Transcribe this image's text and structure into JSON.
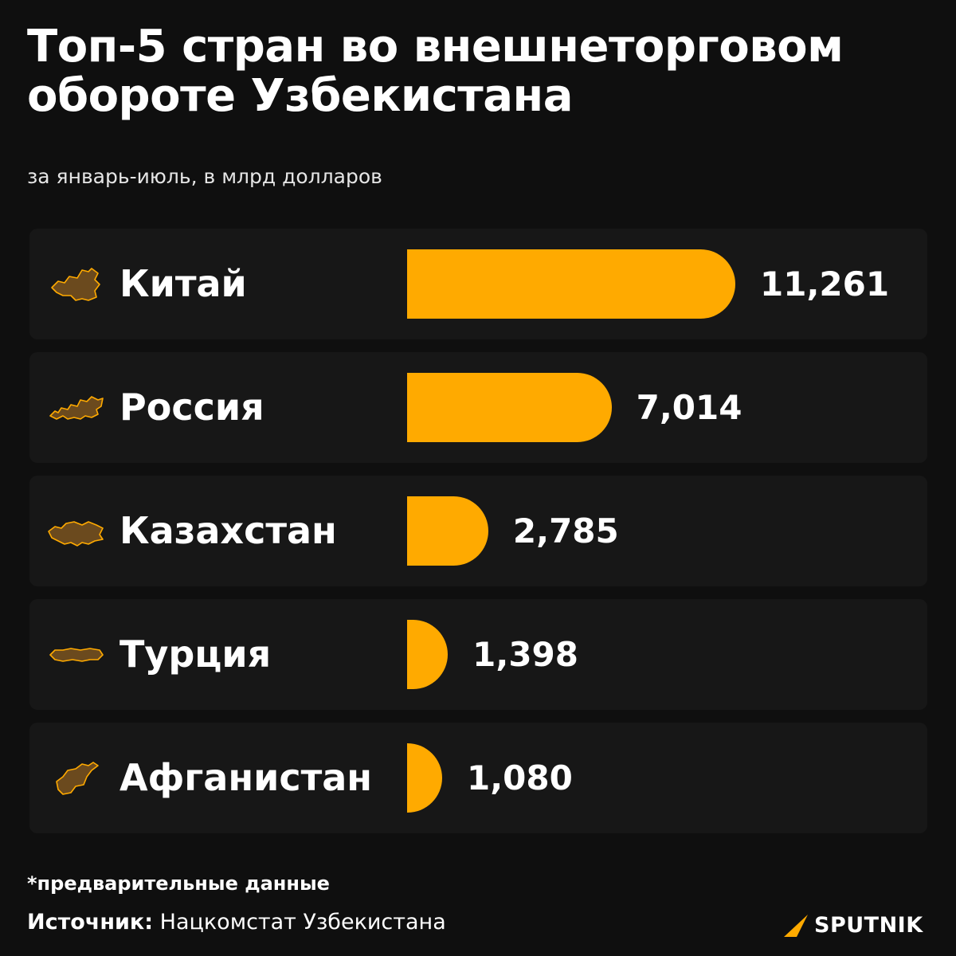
{
  "header": {
    "title": "Топ-5 стран во внешнеторговом обороте Узбекистана",
    "subtitle": "за январь-июль, в млрд долларов"
  },
  "colors": {
    "background": "#0f0f0f",
    "row": "#171717",
    "bar": "#ffaa00",
    "map_fill": "#6b4a1e",
    "map_outline": "#ffaa00"
  },
  "chart_data": {
    "type": "bar",
    "orientation": "horizontal",
    "title": "Топ-5 стран во внешнеторговом обороте Узбекистана",
    "subtitle": "за январь-июль, в млрд долларов",
    "categories": [
      "Китай",
      "Россия",
      "Казахстан",
      "Турция",
      "Афганистан"
    ],
    "values": [
      11.261,
      7.014,
      2.785,
      1.398,
      1.08
    ],
    "value_labels": [
      "11,261",
      "7,014",
      "2,785",
      "1,398",
      "1,080"
    ],
    "icons": [
      "china-map-icon",
      "russia-map-icon",
      "kazakhstan-map-icon",
      "turkey-map-icon",
      "afghanistan-map-icon"
    ],
    "grid": false
  },
  "footer": {
    "note": "*предварительные данные",
    "source_label": "Источник:",
    "source_value": "Нацкомстат Узбекистана",
    "brand": "SPUTNIK"
  }
}
